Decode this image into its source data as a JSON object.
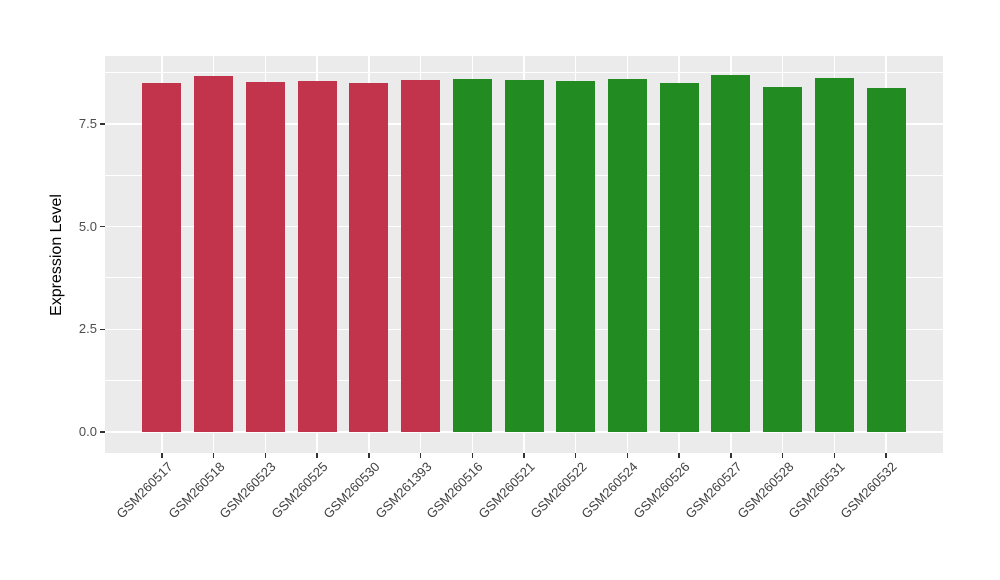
{
  "chart_data": {
    "type": "bar",
    "title": "",
    "xlabel": "",
    "ylabel": "Expression Level",
    "ylim": [
      -0.5,
      9.1
    ],
    "yticks": {
      "values": [
        0,
        2.5,
        5,
        7.5
      ],
      "labels": [
        "0.0",
        "2.5",
        "5.0",
        "7.5"
      ]
    },
    "minor_yticks": [
      1.25,
      3.75,
      6.25,
      8.75
    ],
    "legend_position": "none",
    "grid": "white major+minor gridlines on grey panel",
    "panel_bg": "#EBEBEB",
    "gridline_color": "#FFFFFF",
    "tick_color": "#333333",
    "axis_text_color": "#4D4D4D",
    "axis_title_color": "#000000",
    "groups": [
      {
        "name": "group-red",
        "color": "#C2334C"
      },
      {
        "name": "group-green",
        "color": "#228B22"
      }
    ],
    "bars": [
      {
        "label": "GSM260517",
        "value": 8.48,
        "group": 0
      },
      {
        "label": "GSM260518",
        "value": 8.66,
        "group": 0
      },
      {
        "label": "GSM260523",
        "value": 8.51,
        "group": 0
      },
      {
        "label": "GSM260525",
        "value": 8.54,
        "group": 0
      },
      {
        "label": "GSM260530",
        "value": 8.5,
        "group": 0
      },
      {
        "label": "GSM261393",
        "value": 8.56,
        "group": 0
      },
      {
        "label": "GSM260516",
        "value": 8.59,
        "group": 1
      },
      {
        "label": "GSM260521",
        "value": 8.57,
        "group": 1
      },
      {
        "label": "GSM260522",
        "value": 8.55,
        "group": 1
      },
      {
        "label": "GSM260524",
        "value": 8.6,
        "group": 1
      },
      {
        "label": "GSM260526",
        "value": 8.49,
        "group": 1
      },
      {
        "label": "GSM260527",
        "value": 8.68,
        "group": 1
      },
      {
        "label": "GSM260528",
        "value": 8.39,
        "group": 1
      },
      {
        "label": "GSM260531",
        "value": 8.62,
        "group": 1
      },
      {
        "label": "GSM260532",
        "value": 8.37,
        "group": 1
      }
    ]
  }
}
